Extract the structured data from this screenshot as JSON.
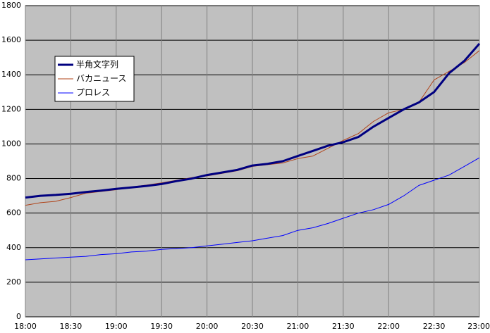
{
  "chart_data": {
    "type": "line",
    "x": [
      "18:00",
      "18:10",
      "18:20",
      "18:30",
      "18:40",
      "18:50",
      "19:00",
      "19:10",
      "19:20",
      "19:30",
      "19:40",
      "19:50",
      "20:00",
      "20:10",
      "20:20",
      "20:30",
      "20:40",
      "20:50",
      "21:00",
      "21:10",
      "21:20",
      "21:30",
      "21:40",
      "21:50",
      "22:00",
      "22:10",
      "22:20",
      "22:30",
      "22:40",
      "22:50",
      "23:00"
    ],
    "xlim": [
      "18:00",
      "23:00"
    ],
    "xticks": [
      "18:00",
      "18:30",
      "19:00",
      "19:30",
      "20:00",
      "20:30",
      "21:00",
      "21:30",
      "22:00",
      "22:30",
      "23:00"
    ],
    "ylim": [
      0,
      1800
    ],
    "yticks": [
      0,
      200,
      400,
      600,
      800,
      1000,
      1200,
      1400,
      1600,
      1800
    ],
    "grid": true,
    "background": "#c0c0c0",
    "legend": "upper left",
    "series": [
      {
        "name": "半角文字列",
        "color": "#000080",
        "width": 3,
        "values": [
          690,
          700,
          705,
          712,
          722,
          730,
          740,
          748,
          757,
          768,
          785,
          800,
          820,
          835,
          850,
          875,
          885,
          900,
          930,
          960,
          990,
          1010,
          1040,
          1100,
          1150,
          1200,
          1240,
          1300,
          1410,
          1480,
          1580
        ]
      },
      {
        "name": "バカニュース",
        "color": "#b0441a",
        "width": 1,
        "values": [
          645,
          660,
          668,
          690,
          715,
          725,
          735,
          750,
          762,
          775,
          790,
          805,
          815,
          830,
          845,
          870,
          880,
          890,
          915,
          930,
          975,
          1020,
          1060,
          1130,
          1180,
          1200,
          1240,
          1370,
          1420,
          1470,
          1540
        ]
      },
      {
        "name": "プロレス",
        "color": "#0000ff",
        "width": 1,
        "values": [
          330,
          335,
          340,
          345,
          350,
          360,
          365,
          375,
          380,
          390,
          395,
          400,
          410,
          420,
          430,
          440,
          455,
          470,
          500,
          515,
          540,
          570,
          600,
          620,
          650,
          700,
          760,
          790,
          820,
          870,
          920
        ]
      }
    ]
  }
}
